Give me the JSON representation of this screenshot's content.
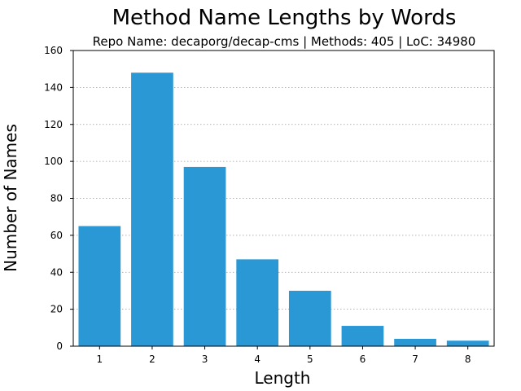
{
  "chart_data": {
    "type": "bar",
    "title": "Method Name Lengths by Words",
    "subtitle": "Repo Name: decaporg/decap-cms | Methods: 405 | LoC: 34980",
    "xlabel": "Length",
    "ylabel": "Number of Names",
    "categories": [
      "1",
      "2",
      "3",
      "4",
      "5",
      "6",
      "7",
      "8"
    ],
    "values": [
      65,
      148,
      97,
      47,
      30,
      11,
      4,
      3
    ],
    "ylim": [
      0,
      160
    ],
    "yticks": [
      "0",
      "20",
      "40",
      "60",
      "80",
      "100",
      "120",
      "140",
      "160"
    ],
    "grid": "y-dotted",
    "bar_color": "#2b98d6"
  }
}
